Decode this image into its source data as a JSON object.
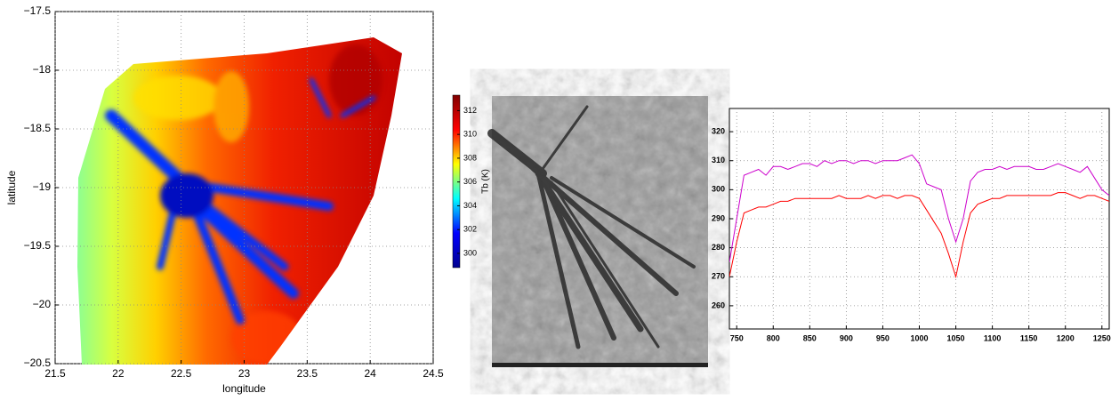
{
  "chart_data": [
    {
      "type": "heatmap",
      "xlabel": "longitude",
      "ylabel": "latitude",
      "xlim": [
        21.5,
        24.5
      ],
      "xticks": [
        21.5,
        22,
        22.5,
        23,
        23.5,
        24,
        24.5
      ],
      "ylim": [
        -20.5,
        -17.5
      ],
      "yticks": [
        {
          "value": -20.5,
          "label": "−20.5"
        },
        {
          "value": -20,
          "label": "−20"
        },
        {
          "value": -19.5,
          "label": "−19.5"
        },
        {
          "value": -19,
          "label": "−19"
        },
        {
          "value": -18.5,
          "label": "−18.5"
        },
        {
          "value": -18,
          "label": "−18"
        },
        {
          "value": -17.5,
          "label": "−17.5"
        }
      ],
      "grid": true,
      "colorbar": {
        "label": "Tb (K)",
        "lim": [
          298.8,
          313.3
        ],
        "ticks": [
          300,
          302,
          304,
          306,
          308,
          310,
          312
        ],
        "colors": [
          "#00008f",
          "#0000ff",
          "#00ffff",
          "#ffff00",
          "#ff0000",
          "#800000"
        ]
      }
    },
    {
      "type": "line",
      "grid": true,
      "xlim": [
        740,
        1260
      ],
      "xticks": [
        750,
        800,
        850,
        900,
        950,
        1000,
        1050,
        1100,
        1150,
        1200,
        1250
      ],
      "ylim": [
        252,
        328
      ],
      "yticks": [
        260,
        270,
        280,
        290,
        300,
        310,
        320
      ],
      "x": [
        740,
        750,
        760,
        770,
        780,
        790,
        800,
        810,
        820,
        830,
        840,
        850,
        860,
        870,
        880,
        890,
        900,
        910,
        920,
        930,
        940,
        950,
        960,
        970,
        980,
        990,
        1000,
        1010,
        1020,
        1030,
        1040,
        1050,
        1060,
        1070,
        1080,
        1090,
        1100,
        1110,
        1120,
        1130,
        1140,
        1150,
        1160,
        1170,
        1180,
        1190,
        1200,
        1210,
        1220,
        1230,
        1240,
        1250,
        1260
      ],
      "series": [
        {
          "color": "#cc00cc",
          "values": [
            275,
            290,
            305,
            306,
            307,
            305,
            308,
            308,
            307,
            308,
            309,
            309,
            308,
            310,
            309,
            310,
            310,
            309,
            310,
            310,
            309,
            310,
            310,
            310,
            311,
            312,
            309,
            302,
            301,
            300,
            290,
            282,
            290,
            303,
            306,
            307,
            307,
            308,
            307,
            308,
            308,
            308,
            307,
            307,
            308,
            309,
            308,
            307,
            306,
            308,
            304,
            300,
            298
          ]
        },
        {
          "color": "#ff0000",
          "values": [
            270,
            282,
            292,
            293,
            294,
            294,
            295,
            296,
            296,
            297,
            297,
            297,
            297,
            297,
            297,
            298,
            297,
            297,
            297,
            298,
            297,
            298,
            298,
            297,
            298,
            298,
            297,
            293,
            289,
            285,
            278,
            270,
            282,
            292,
            295,
            296,
            297,
            297,
            298,
            298,
            298,
            298,
            298,
            298,
            298,
            299,
            299,
            298,
            297,
            298,
            298,
            297,
            296
          ]
        }
      ]
    }
  ]
}
